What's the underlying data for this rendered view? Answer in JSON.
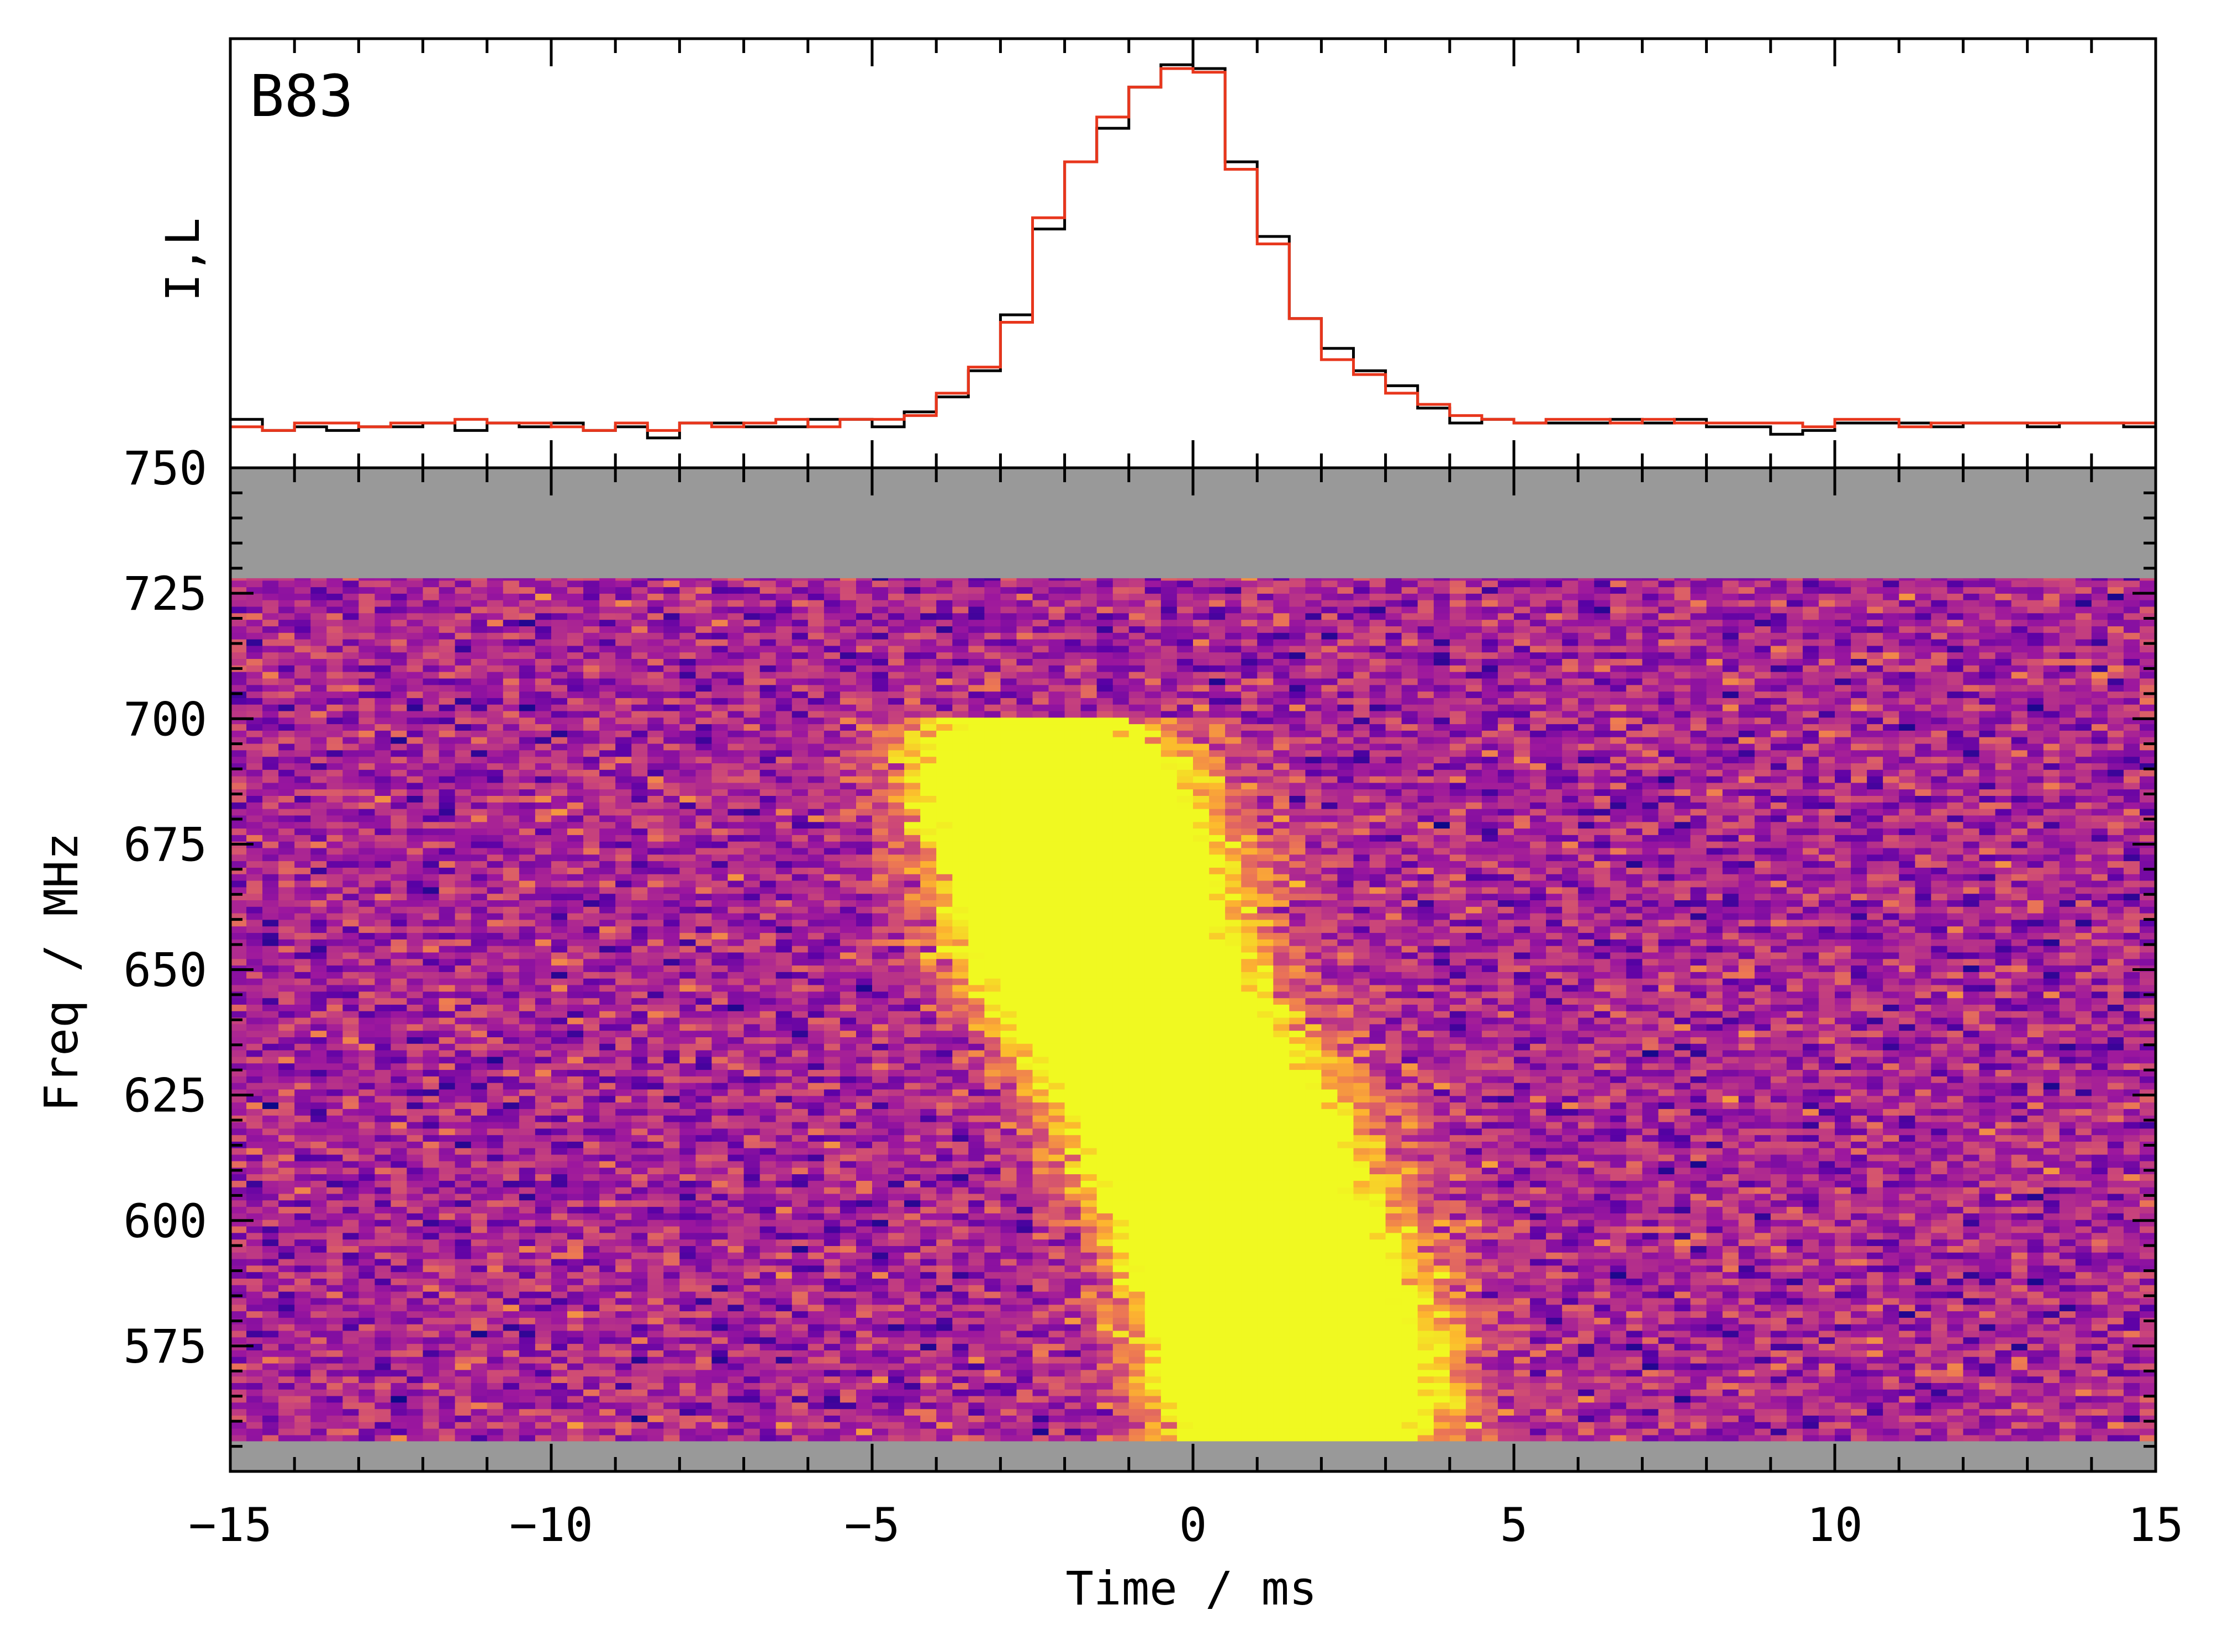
{
  "panel_label": "B83",
  "top_ylabel": "I,L",
  "bottom_ylabel": "Freq / MHz",
  "xlabel": "Time / ms",
  "colors": {
    "profile_I": "#000000",
    "profile_L": "#e8361c",
    "masked": "#999999",
    "colormap": [
      "#0d0887",
      "#5c01a6",
      "#9c179e",
      "#cc4778",
      "#ed7953",
      "#fdb42f",
      "#f0f921"
    ]
  },
  "chart_data": [
    {
      "type": "line",
      "title": "",
      "xlabel": "",
      "ylabel": "I,L",
      "xlim": [
        -15,
        15
      ],
      "step": true,
      "x": [
        -15.0,
        -14.5,
        -14.0,
        -13.5,
        -13.0,
        -12.5,
        -12.0,
        -11.5,
        -11.0,
        -10.5,
        -10.0,
        -9.5,
        -9.0,
        -8.5,
        -8.0,
        -7.5,
        -7.0,
        -6.5,
        -6.0,
        -5.5,
        -5.0,
        -4.5,
        -4.0,
        -3.5,
        -3.0,
        -2.5,
        -2.0,
        -1.5,
        -1.0,
        -0.5,
        0.0,
        0.5,
        1.0,
        1.5,
        2.0,
        2.5,
        3.0,
        3.5,
        4.0,
        4.5,
        5.0,
        5.5,
        6.0,
        6.5,
        7.0,
        7.5,
        8.0,
        8.5,
        9.0,
        9.5,
        10.0,
        10.5,
        11.0,
        11.5,
        12.0,
        12.5,
        13.0,
        13.5,
        14.0,
        14.5
      ],
      "series": [
        {
          "name": "I",
          "values": [
            0.03,
            0.0,
            0.01,
            0.0,
            0.01,
            0.01,
            0.02,
            0.0,
            0.02,
            0.01,
            0.02,
            0.0,
            0.01,
            -0.02,
            0.02,
            0.02,
            0.01,
            0.01,
            0.03,
            0.03,
            0.01,
            0.05,
            0.09,
            0.16,
            0.31,
            0.54,
            0.72,
            0.81,
            0.92,
            0.98,
            0.97,
            0.72,
            0.52,
            0.3,
            0.22,
            0.16,
            0.12,
            0.06,
            0.02,
            0.03,
            0.02,
            0.02,
            0.02,
            0.03,
            0.02,
            0.03,
            0.01,
            0.01,
            -0.01,
            0.0,
            0.02,
            0.02,
            0.02,
            0.01,
            0.02,
            0.02,
            0.01,
            0.02,
            0.02,
            0.01
          ]
        },
        {
          "name": "L",
          "values": [
            0.01,
            0.0,
            0.02,
            0.02,
            0.01,
            0.02,
            0.02,
            0.03,
            0.02,
            0.02,
            0.01,
            0.0,
            0.02,
            0.0,
            0.02,
            0.01,
            0.02,
            0.03,
            0.01,
            0.03,
            0.03,
            0.04,
            0.1,
            0.17,
            0.29,
            0.57,
            0.72,
            0.84,
            0.92,
            0.97,
            0.96,
            0.7,
            0.5,
            0.3,
            0.19,
            0.15,
            0.1,
            0.07,
            0.04,
            0.03,
            0.02,
            0.03,
            0.03,
            0.02,
            0.03,
            0.02,
            0.02,
            0.02,
            0.02,
            0.01,
            0.03,
            0.03,
            0.01,
            0.02,
            0.02,
            0.02,
            0.02,
            0.02,
            0.02,
            0.02
          ]
        }
      ]
    },
    {
      "type": "heatmap",
      "title": "",
      "xlabel": "Time / ms",
      "ylabel": "Freq / MHz",
      "xlim": [
        -15,
        15
      ],
      "ylim": [
        550,
        750
      ],
      "xticks": [
        -15,
        -10,
        -5,
        0,
        5,
        10,
        15
      ],
      "xticklabels": [
        "−15",
        "−10",
        "−5",
        "0",
        "5",
        "10",
        "15"
      ],
      "yticks": [
        575,
        600,
        625,
        650,
        675,
        700,
        725,
        750
      ],
      "masked_bands_mhz": [
        [
          728,
          750
        ],
        [
          550,
          556
        ]
      ],
      "burst": {
        "description_points": [
          {
            "freq_mhz": 680,
            "time_ms": -2.4
          },
          {
            "freq_mhz": 650,
            "time_ms": -1.7
          },
          {
            "freq_mhz": 620,
            "time_ms": -0.2
          },
          {
            "freq_mhz": 590,
            "time_ms": 0.8
          },
          {
            "freq_mhz": 565,
            "time_ms": 1.3
          }
        ],
        "peak_band_mhz": [
          558,
          688
        ]
      }
    }
  ]
}
